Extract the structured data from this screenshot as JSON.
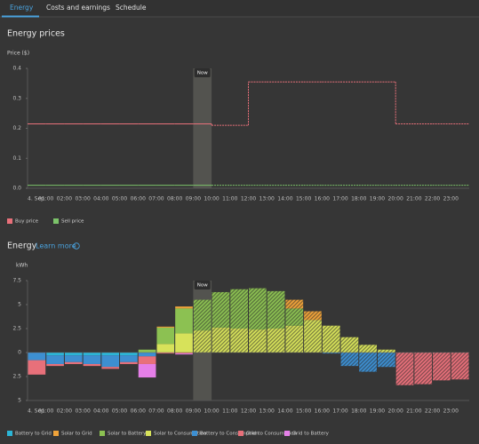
{
  "tabs": [
    "Energy",
    "Costs and earnings",
    "Schedule"
  ],
  "chart_data": [
    {
      "type": "step-line",
      "title": "Energy prices",
      "y_label": "Price ($)",
      "categories": [
        "4. Sep",
        "01:00",
        "02:00",
        "03:00",
        "04:00",
        "05:00",
        "06:00",
        "07:00",
        "08:00",
        "09:00",
        "10:00",
        "11:00",
        "12:00",
        "13:00",
        "14:00",
        "15:00",
        "16:00",
        "17:00",
        "18:00",
        "19:00",
        "20:00",
        "21:00",
        "22:00",
        "23:00"
      ],
      "series": [
        {
          "name": "Buy price",
          "color": "#e8707a",
          "values": [
            0.215,
            0.215,
            0.215,
            0.215,
            0.215,
            0.215,
            0.215,
            0.215,
            0.215,
            0.215,
            0.21,
            0.21,
            0.355,
            0.355,
            0.355,
            0.355,
            0.355,
            0.355,
            0.355,
            0.355,
            0.215,
            0.215,
            0.215,
            0.215
          ]
        },
        {
          "name": "Sell price",
          "color": "#7cc36a",
          "values": [
            0.01,
            0.01,
            0.01,
            0.01,
            0.01,
            0.01,
            0.01,
            0.01,
            0.01,
            0.01,
            0.01,
            0.01,
            0.01,
            0.01,
            0.01,
            0.01,
            0.01,
            0.01,
            0.01,
            0.01,
            0.01,
            0.01,
            0.01,
            0.01
          ]
        }
      ],
      "ylim": [
        0,
        0.4
      ],
      "yticks": [
        {
          "value": 0,
          "label": "0.0"
        },
        0.1,
        0.2,
        0.3,
        0.4
      ],
      "now": {
        "label": "Now",
        "category": "09:00"
      }
    },
    {
      "type": "stacked-bar",
      "title": "Energy",
      "link": "Learn more",
      "y_label": "kWh",
      "categories": [
        "4. Sep",
        "01:00",
        "02:00",
        "03:00",
        "04:00",
        "05:00",
        "06:00",
        "07:00",
        "08:00",
        "09:00",
        "10:00",
        "11:00",
        "12:00",
        "13:00",
        "14:00",
        "15:00",
        "16:00",
        "17:00",
        "18:00",
        "19:00",
        "20:00",
        "21:00",
        "22:00",
        "23:00"
      ],
      "series": [
        {
          "name": "Battery to Grid",
          "color": "#2bb5d6",
          "values": [
            0,
            -0.3,
            -0.3,
            -0.3,
            -0.3,
            -0.3,
            0,
            0,
            0,
            0,
            0,
            0,
            0,
            0,
            0,
            0,
            0,
            0,
            0,
            0,
            0,
            0,
            0,
            0
          ]
        },
        {
          "name": "Solar to Grid",
          "color": "#f0a33a",
          "values": [
            0,
            0,
            0,
            0,
            0,
            0,
            0,
            0.1,
            0.2,
            0,
            0,
            0,
            0,
            0,
            0.9,
            0.9,
            0,
            0,
            0,
            0,
            0,
            0,
            0,
            0
          ]
        },
        {
          "name": "Solar to Battery",
          "color": "#8cc152",
          "values": [
            0,
            0,
            0,
            0,
            0,
            0,
            0.3,
            1.7,
            2.6,
            3.2,
            3.7,
            4.1,
            4.3,
            3.9,
            1.8,
            0,
            0,
            0,
            0,
            0,
            0,
            0,
            0,
            0
          ]
        },
        {
          "name": "Solar to Consumption",
          "color": "#d7e25a",
          "values": [
            0,
            0,
            0,
            0,
            0,
            0,
            0,
            0.9,
            2.0,
            2.3,
            2.6,
            2.5,
            2.4,
            2.5,
            2.8,
            3.4,
            2.8,
            1.6,
            0.8,
            0.3,
            0,
            0,
            0,
            0
          ]
        },
        {
          "name": "Battery to Consumption",
          "color": "#3d8fd1",
          "values": [
            -0.8,
            -0.9,
            -0.7,
            -0.9,
            -1.2,
            -0.7,
            -0.4,
            0,
            0,
            0,
            0,
            0,
            0,
            0,
            0,
            0,
            -0.1,
            -1.4,
            -2.0,
            -1.5,
            0,
            0,
            0,
            0
          ]
        },
        {
          "name": "Grid to Consumption",
          "color": "#e8707a",
          "values": [
            -1.5,
            -0.2,
            -0.2,
            -0.2,
            -0.2,
            -0.2,
            -0.8,
            -0.1,
            -0.1,
            0,
            0,
            0,
            0,
            0,
            0,
            0,
            0,
            0,
            0,
            0,
            -3.4,
            -3.3,
            -2.9,
            -2.8
          ]
        },
        {
          "name": "Grid to Battery",
          "color": "#e57fe8",
          "values": [
            0,
            0,
            0,
            0,
            0,
            0,
            -1.4,
            0,
            -0.1,
            0,
            0,
            0,
            0,
            0,
            0,
            0,
            0,
            0,
            0,
            0,
            0,
            0,
            0,
            0
          ]
        }
      ],
      "ylim": [
        -5,
        7.5
      ],
      "yticks": [
        {
          "value": -5,
          "label": "5"
        },
        {
          "value": -2.5,
          "label": "2.5"
        },
        0,
        2.5,
        5,
        7.5
      ],
      "now": {
        "label": "Now",
        "category": "09:00"
      }
    }
  ]
}
